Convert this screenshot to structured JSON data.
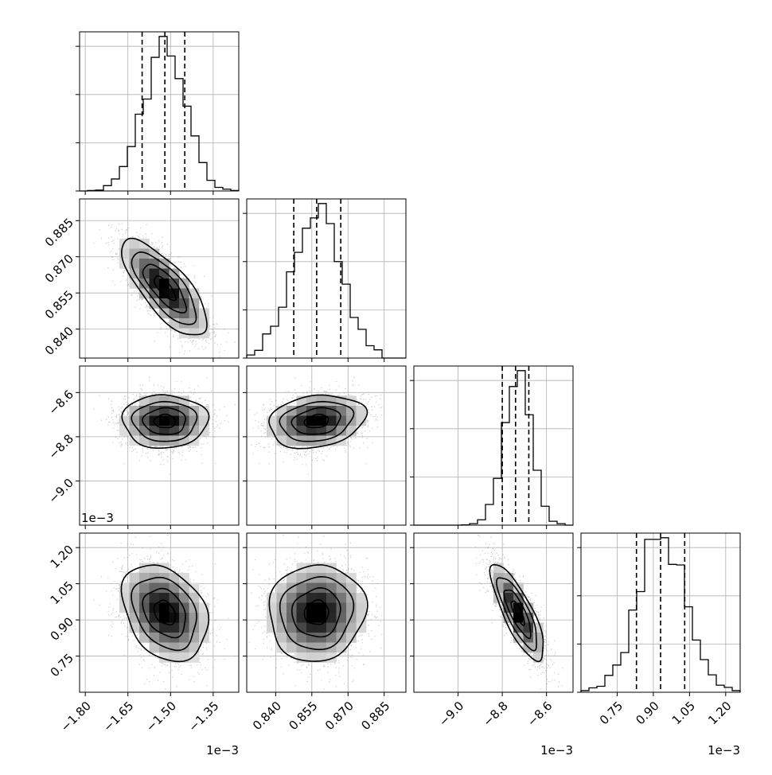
{
  "chart_data": {
    "type": "corner",
    "parameters": [
      {
        "axis_range": [
          -1.82,
          -1.26
        ],
        "ticks": [
          -1.8,
          -1.65,
          -1.5,
          -1.35
        ],
        "tick_labels": [
          "−1.80",
          "−1.65",
          "−1.50",
          "−1.35"
        ],
        "offset_label": "1e−3",
        "quantiles": [
          -1.6,
          -1.52,
          -1.45
        ],
        "center": -1.52,
        "sigma": 0.075
      },
      {
        "axis_range": [
          0.828,
          0.894
        ],
        "ticks": [
          0.84,
          0.855,
          0.87,
          0.885
        ],
        "tick_labels": [
          "0.840",
          "0.855",
          "0.870",
          "0.885"
        ],
        "offset_label": "",
        "quantiles": [
          0.8475,
          0.857,
          0.867
        ],
        "center": 0.857,
        "sigma": 0.01
      },
      {
        "axis_range": [
          -9.2,
          -8.48
        ],
        "ticks": [
          -9.0,
          -8.8,
          -8.6
        ],
        "tick_labels": [
          "−9.0",
          "−8.8",
          "−8.6"
        ],
        "offset_label": "1e−3",
        "quantiles": [
          -8.8,
          -8.74,
          -8.68
        ],
        "center": -8.73,
        "sigma": 0.06
      },
      {
        "axis_range": [
          0.6,
          1.26
        ],
        "ticks": [
          0.75,
          0.9,
          1.05,
          1.2
        ],
        "tick_labels": [
          "0.75",
          "0.90",
          "1.05",
          "1.20"
        ],
        "offset_label": "1e−3",
        "quantiles": [
          0.83,
          0.93,
          1.03
        ],
        "center": 0.93,
        "sigma": 0.1
      }
    ],
    "correlations": [
      [
        1,
        -0.75,
        0.0,
        -0.3
      ],
      [
        -0.75,
        1,
        0.2,
        0.05
      ],
      [
        0.0,
        0.2,
        1,
        -0.8
      ],
      [
        -0.3,
        0.05,
        -0.8,
        1
      ]
    ],
    "contour_levels_sigma": [
      0.5,
      1.0,
      1.5,
      2.0
    ],
    "hist_bins": 20,
    "grid": true,
    "colors": {
      "line": "#000000",
      "point": "#8a8a8a"
    }
  }
}
